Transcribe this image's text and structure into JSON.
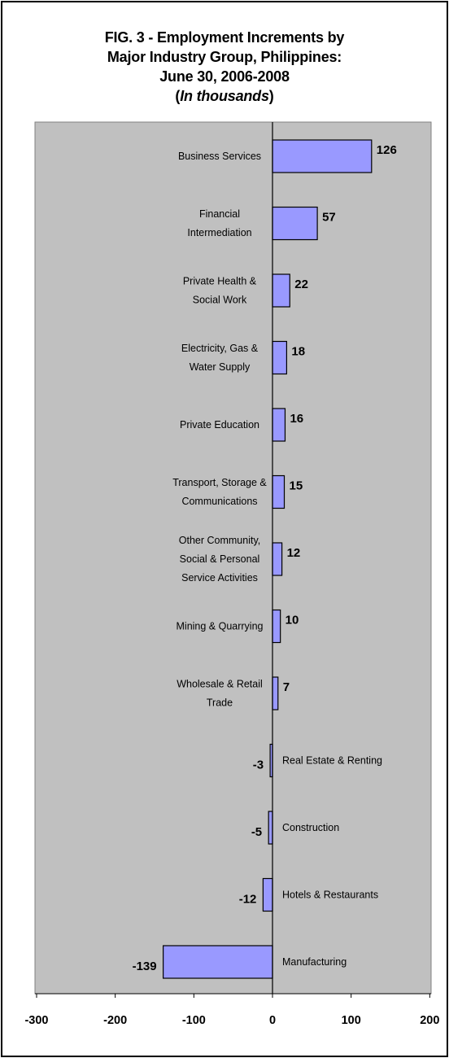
{
  "chart_data": {
    "type": "bar",
    "orientation": "horizontal",
    "title": {
      "line1": "FIG. 3 - Employment Increments by",
      "line2": "Major Industry Group, Philippines:",
      "line3": "June 30, 2006-2008",
      "line4_prefix": "(",
      "line4_italic": "In thousands",
      "line4_suffix": ")"
    },
    "xlim": [
      -300,
      200
    ],
    "xticks": [
      -300,
      -200,
      -100,
      0,
      100,
      200
    ],
    "xtick_labels": [
      "-300",
      "-200",
      "-100",
      "0",
      "100",
      "200"
    ],
    "grid": false,
    "plot_background": "#c0c0c0",
    "bar_color": "#9999ff",
    "categories": [
      [
        "Business Services"
      ],
      [
        "Financial",
        "Intermediation"
      ],
      [
        "Private Health &",
        "Social Work"
      ],
      [
        "Electricity, Gas &",
        "Water Supply"
      ],
      [
        "Private Education"
      ],
      [
        "Transport, Storage &",
        "Communications"
      ],
      [
        "Other Community,",
        "Social & Personal",
        "Service Activities"
      ],
      [
        "Mining & Quarrying"
      ],
      [
        "Wholesale & Retail",
        "Trade"
      ],
      [
        "Real Estate & Renting"
      ],
      [
        "Construction"
      ],
      [
        "Hotels & Restaurants"
      ],
      [
        "Manufacturing"
      ]
    ],
    "values": [
      126,
      57,
      22,
      18,
      16,
      15,
      12,
      10,
      7,
      -3,
      -5,
      -12,
      -139
    ],
    "value_labels": [
      "126",
      "57",
      "22",
      "18",
      "16",
      "15",
      "12",
      "10",
      "7",
      "-3",
      "-5",
      "-12",
      "-139"
    ]
  }
}
